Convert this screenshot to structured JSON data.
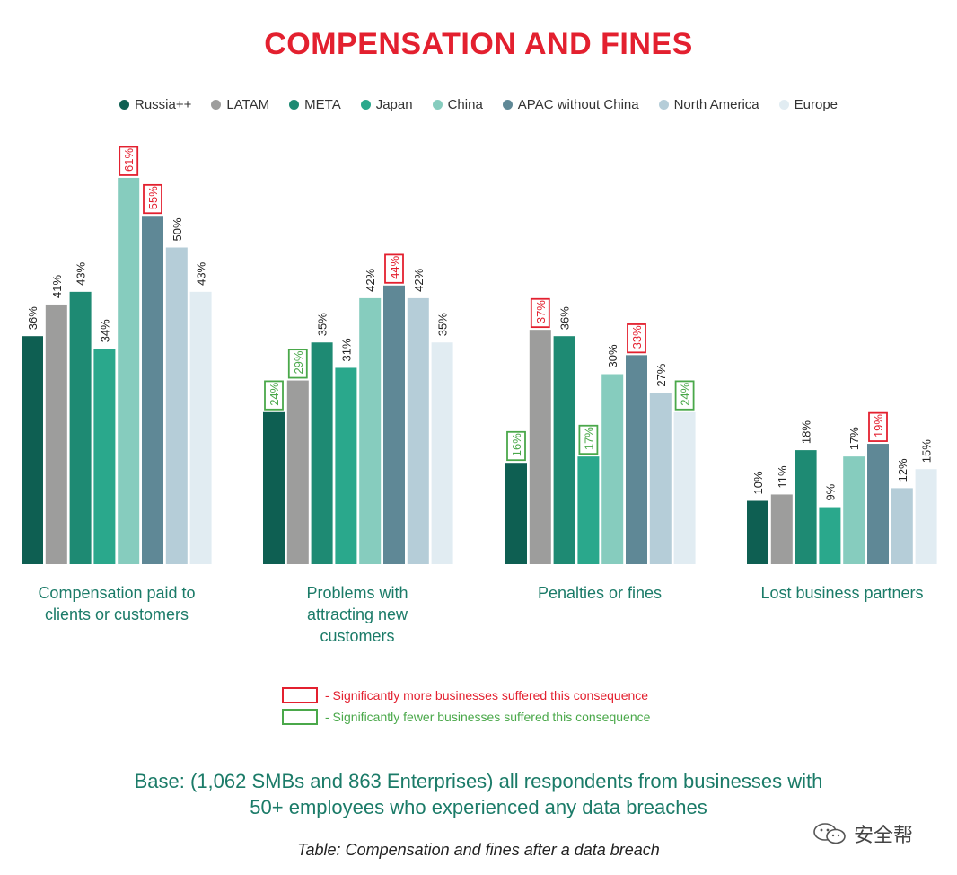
{
  "title": "COMPENSATION AND FINES",
  "legend": [
    {
      "label": "Russia++",
      "color": "#0e5f52"
    },
    {
      "label": "LATAM",
      "color": "#9d9d9c"
    },
    {
      "label": "META",
      "color": "#1e8a73"
    },
    {
      "label": "Japan",
      "color": "#2aa88c"
    },
    {
      "label": "China",
      "color": "#86ccbe"
    },
    {
      "label": "APAC without China",
      "color": "#5f8896"
    },
    {
      "label": "North America",
      "color": "#b5cdd8"
    },
    {
      "label": "Europe",
      "color": "#e1ecf2"
    }
  ],
  "chart_data": {
    "type": "bar",
    "categories": [
      "Compensation paid to clients or customers",
      "Problems with attracting new customers",
      "Penalties or fines",
      "Lost business partners"
    ],
    "series": [
      {
        "name": "Russia++",
        "values": [
          36,
          24,
          16,
          10
        ]
      },
      {
        "name": "LATAM",
        "values": [
          41,
          29,
          37,
          11
        ]
      },
      {
        "name": "META",
        "values": [
          43,
          35,
          36,
          18
        ]
      },
      {
        "name": "Japan",
        "values": [
          34,
          31,
          17,
          9
        ]
      },
      {
        "name": "China",
        "values": [
          61,
          42,
          30,
          17
        ]
      },
      {
        "name": "APAC without China",
        "values": [
          55,
          44,
          33,
          19
        ]
      },
      {
        "name": "North America",
        "values": [
          50,
          42,
          27,
          12
        ]
      },
      {
        "name": "Europe",
        "values": [
          43,
          35,
          24,
          15
        ]
      }
    ],
    "value_suffix": "%",
    "significance": [
      [
        "none",
        "none",
        "none",
        "none",
        "more",
        "more",
        "none",
        "none"
      ],
      [
        "fewer",
        "fewer",
        "none",
        "none",
        "none",
        "more",
        "none",
        "none"
      ],
      [
        "fewer",
        "more",
        "none",
        "fewer",
        "none",
        "more",
        "none",
        "fewer"
      ],
      [
        "none",
        "none",
        "none",
        "none",
        "none",
        "more",
        "none",
        "none"
      ]
    ],
    "ylim": [
      0,
      61
    ],
    "grid": false
  },
  "group_labels": [
    [
      "Compensation paid to",
      "clients or customers"
    ],
    [
      "Problems with",
      "attracting new",
      "customers"
    ],
    [
      "Penalties or fines"
    ],
    [
      "Lost business partners"
    ]
  ],
  "key": {
    "more": {
      "text": "- Significantly more businesses suffered this consequence",
      "color": "#e3202f"
    },
    "fewer": {
      "text": "- Significantly fewer businesses suffered this consequence",
      "color": "#4aa84a"
    }
  },
  "base": {
    "line1": "Base: (1,062 SMBs and 863 Enterprises) all respondents from businesses with",
    "line2": "50+ employees who experienced any data breaches"
  },
  "caption": "Table: Compensation and fines after a data breach",
  "watermark": "安全帮"
}
